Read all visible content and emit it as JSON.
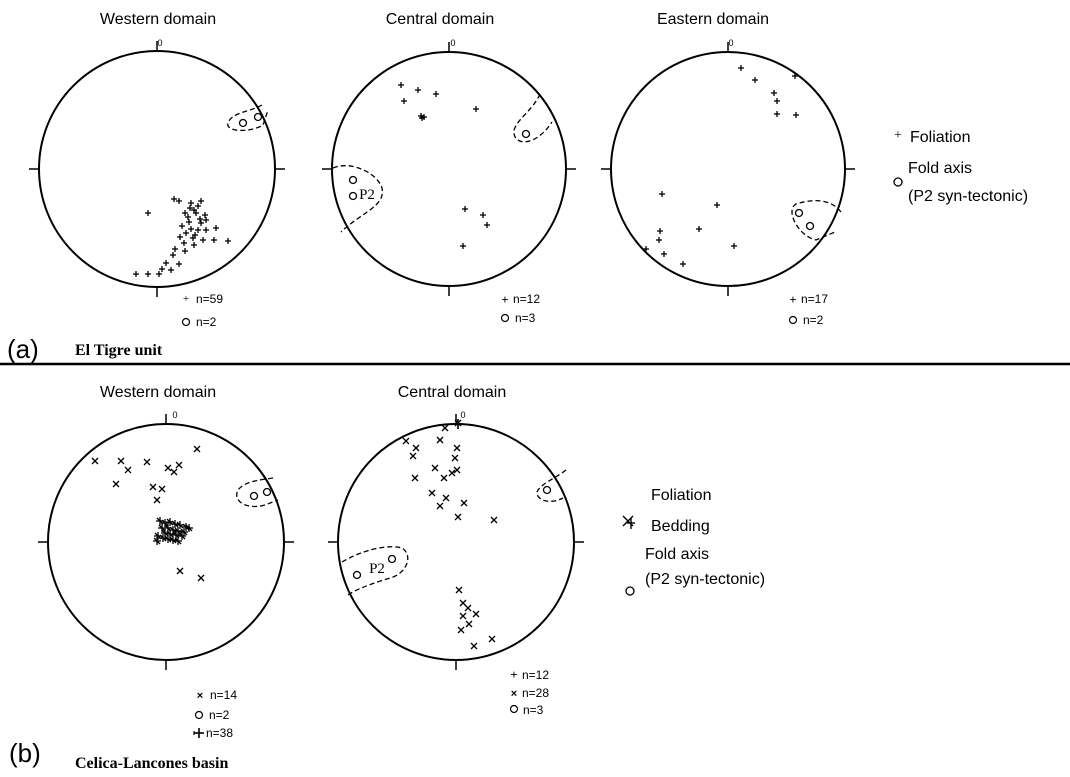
{
  "panel_a": {
    "letter": "(a)",
    "unit_title": "El Tigre unit",
    "net_north_label": "0",
    "nets": [
      {
        "title": "Western domain",
        "dashed_label": "",
        "counts": [
          {
            "symbol": "plus",
            "text": "n=59"
          },
          {
            "symbol": "circle",
            "text": "n=2"
          }
        ]
      },
      {
        "title": "Central domain",
        "dashed_label": "P2",
        "counts": [
          {
            "symbol": "plus-bold",
            "text": "n=12"
          },
          {
            "symbol": "circle",
            "text": "n=3"
          }
        ]
      },
      {
        "title": "Eastern domain",
        "dashed_label": "",
        "counts": [
          {
            "symbol": "plus-bold",
            "text": "n=17"
          },
          {
            "symbol": "circle",
            "text": "n=2"
          }
        ]
      }
    ],
    "legend": {
      "foliation": "Foliation",
      "fold_axis_line1": "Fold axis",
      "fold_axis_line2": "(P2 syn-tectonic)"
    }
  },
  "panel_b": {
    "letter": "(b)",
    "unit_title": "Celica-Lancones basin",
    "net_north_label": "0",
    "nets": [
      {
        "title": "Western domain",
        "dashed_label": "",
        "counts": [
          {
            "symbol": "cross",
            "text": "n=14"
          },
          {
            "symbol": "circle",
            "text": "n=2"
          },
          {
            "symbol": "plus-bold",
            "text": "n=38"
          }
        ]
      },
      {
        "title": "Central domain",
        "dashed_label": "P2",
        "counts": [
          {
            "symbol": "plus-bold",
            "text": "n=12"
          },
          {
            "symbol": "cross",
            "text": "n=28"
          },
          {
            "symbol": "circle",
            "text": "n=3"
          }
        ]
      }
    ],
    "legend": {
      "foliation": "Foliation",
      "bedding": "Bedding",
      "fold_axis_line1": "Fold axis",
      "fold_axis_line2": "(P2 syn-tectonic)"
    }
  }
}
